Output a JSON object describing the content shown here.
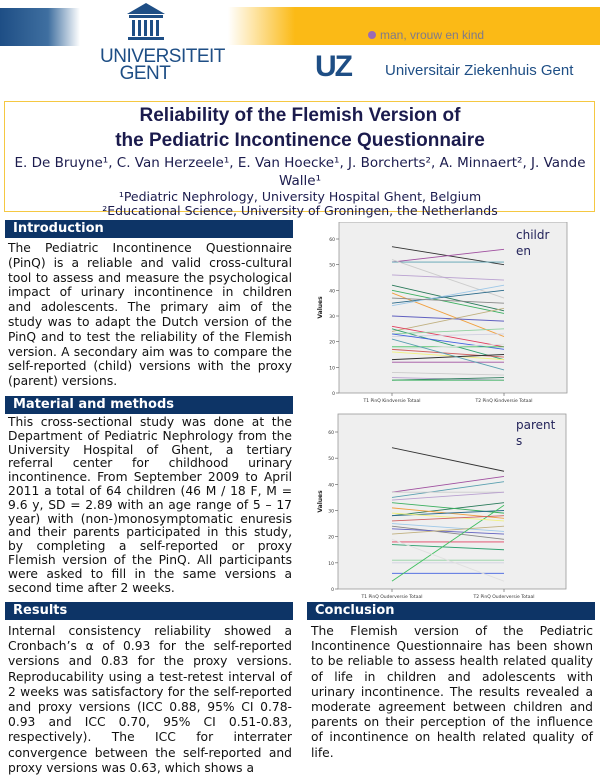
{
  "header": {
    "university_logo": "UNIVERSITEIT GENT",
    "tagline": "man, vrouw en kind",
    "hospital_logo": "UZ",
    "hospital_name": "Universitair Ziekenhuis Gent"
  },
  "title": {
    "line1": "Reliability of the Flemish Version of",
    "line2": "the Pediatric Incontinence Questionnaire",
    "authors": "E. De Bruyne¹, C. Van Herzeele¹, E. Van Hoecke¹, J. Borcherts², A. Minnaert², J. Vande Walle¹",
    "affiliation1": "¹Pediatric Nephrology, University Hospital Ghent, Belgium",
    "affiliation2": "²Educational Science, University of Groningen, the Netherlands"
  },
  "sections": {
    "introduction": {
      "heading": "Introduction",
      "text": "The Pediatric Incontinence Questionnaire (PinQ) is a reliable and valid cross-cultural tool to assess and measure the psychological impact of urinary incontinence in children and adolescents. The primary aim of the study was to adapt the Dutch version of the PinQ and to test the reliability of the Flemish version. A secondary aim was to compare the self-reported (child) versions with the proxy (parent) versions."
    },
    "methods": {
      "heading": "Material and methods",
      "text": "This cross-sectional study was done at the Department of Pediatric Nephrology from the University Hospital of Ghent, a tertiary referral center for childhood urinary incontinence. From September 2009 to April 2011 a total of 64 children (46 M / 18 F, M = 9.6 y, SD = 2.89 with an age range of 5 – 17 year) with (non-)monosymptomatic enuresis and their parents participated in this study, by completing a self-reported or proxy Flemish version of the PinQ. All participants were asked to fill in the same versions a second time after 2 weeks."
    },
    "results": {
      "heading": "Results",
      "text": "Internal consistency reliability showed a Cronbach’s α of 0.93 for the self-reported versions and 0.83 for the proxy versions. Reproducability using a test-retest interval of 2 weeks was satisfactory for the self-reported and proxy versions (ICC 0.88, 95% CI 0.78-0.93 and ICC 0.70, 95% CI 0.51-0.83, respectively). The ICC for interrater convergence between the self-reported and proxy versions was 0.63, which shows a"
    },
    "conclusion": {
      "heading": "Conclusion",
      "text": "The Flemish version of the Pediatric Incontinence Questionnaire has been shown to be reliable to assess health related quality of life in children and adolescents with urinary incontinence. The results revealed a moderate agreement between children and parents on their perception of the influence of incontinence on health related quality of life."
    }
  },
  "chart_data": [
    {
      "type": "line",
      "label": "children",
      "ylabel": "Values",
      "categories": [
        "T1 PinQ Kindversie Totaal",
        "T2 PinQ Kindversie Totaal"
      ],
      "ylim": [
        0,
        65
      ],
      "yticks": [
        0,
        10,
        20,
        30,
        40,
        50,
        60
      ],
      "pairs": [
        [
          57,
          50
        ],
        [
          51,
          56
        ],
        [
          51,
          51
        ],
        [
          52,
          37
        ],
        [
          46,
          44
        ],
        [
          42,
          32
        ],
        [
          40,
          31
        ],
        [
          39,
          22
        ],
        [
          35,
          40
        ],
        [
          34,
          42
        ],
        [
          37,
          35
        ],
        [
          30,
          28
        ],
        [
          24,
          33
        ],
        [
          26,
          18
        ],
        [
          25,
          13
        ],
        [
          23,
          25
        ],
        [
          22,
          23
        ],
        [
          23,
          17
        ],
        [
          18,
          18
        ],
        [
          17,
          19
        ],
        [
          16,
          13
        ],
        [
          17,
          14
        ],
        [
          13,
          15
        ],
        [
          12,
          12
        ],
        [
          21,
          9
        ],
        [
          8,
          7
        ],
        [
          6,
          5
        ],
        [
          5,
          6
        ],
        [
          5,
          5
        ]
      ]
    },
    {
      "type": "line",
      "label": "parents",
      "ylabel": "Values",
      "categories": [
        "T1 PinQ Ouderversie Totaal",
        "T2 PinQ Ouderversie Totaal"
      ],
      "ylim": [
        0,
        65
      ],
      "yticks": [
        0,
        10,
        20,
        30,
        40,
        50,
        60
      ],
      "pairs": [
        [
          54,
          45
        ],
        [
          37,
          43
        ],
        [
          35,
          41
        ],
        [
          37,
          37
        ],
        [
          34,
          37
        ],
        [
          28,
          33
        ],
        [
          33,
          29
        ],
        [
          31,
          27
        ],
        [
          28,
          30
        ],
        [
          25,
          22
        ],
        [
          24,
          19
        ],
        [
          23,
          21
        ],
        [
          21,
          24
        ],
        [
          18,
          18
        ],
        [
          17,
          15
        ],
        [
          11,
          11
        ],
        [
          10,
          10
        ],
        [
          6,
          6
        ],
        [
          3,
          32
        ],
        [
          19,
          3
        ],
        [
          29,
          26
        ],
        [
          26,
          28
        ]
      ]
    }
  ],
  "colors": {
    "header_blue": "#0d3466",
    "accent_yellow": "#fbba16",
    "title_navy": "#1b1b4d"
  }
}
